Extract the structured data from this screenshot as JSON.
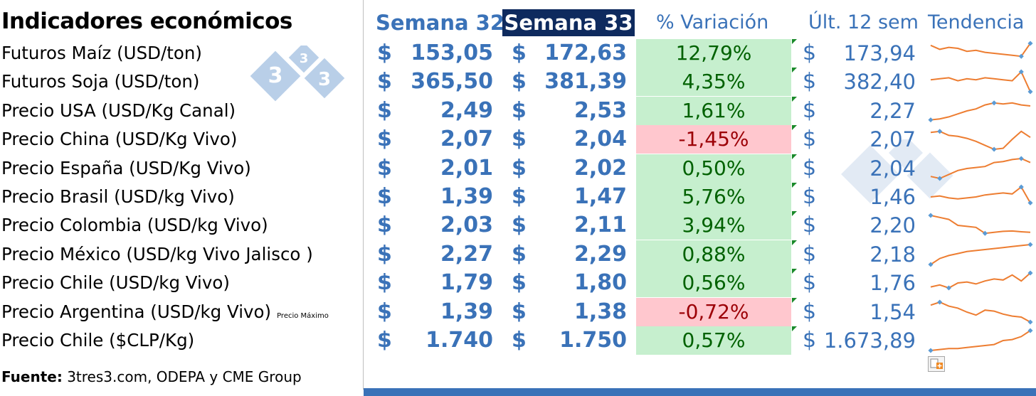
{
  "title": "Indicadores económicos",
  "headers": {
    "week32": "Semana 32",
    "week33": "Semana 33",
    "variation": "% Variación",
    "last12": "Últ. 12 sem",
    "trend": "Tendencia"
  },
  "currency_symbol": "$",
  "note": "Precio Máximo",
  "source_label": "Fuente:",
  "source_text": " 3tres3.com, ODEPA y CME Group",
  "logo_digits": [
    "3",
    "3",
    "3"
  ],
  "colors": {
    "accent_blue": "#3a72b8",
    "header_dark": "#0e2a5e",
    "positive_bg": "#c6efce",
    "positive_text": "#006100",
    "negative_bg": "#ffc7ce",
    "negative_text": "#9c0006",
    "sparkline": "#ed7d31",
    "sparkline_marker": "#5b9bd5"
  },
  "rows": [
    {
      "label": "Futuros Maíz (USD/ton)",
      "w32": "153,05",
      "w33": "172,63",
      "variation": "12,79%",
      "sign": "pos",
      "last12": "173,94",
      "trend": [
        0.9,
        0.7,
        0.8,
        0.75,
        0.6,
        0.65,
        0.55,
        0.5,
        0.45,
        0.4,
        0.35,
        1.0
      ]
    },
    {
      "label": "Futuros Soja (USD/ton)",
      "w32": "365,50",
      "w33": "381,39",
      "variation": "4,35%",
      "sign": "pos",
      "last12": "382,40",
      "trend": [
        0.6,
        0.65,
        0.7,
        0.55,
        0.65,
        0.6,
        0.7,
        0.65,
        0.6,
        0.55,
        1.0,
        0.0
      ]
    },
    {
      "label": "Precio USA (USD/Kg Canal)",
      "w32": "2,49",
      "w33": "2,53",
      "variation": "1,61%",
      "sign": "pos",
      "last12": "2,27",
      "trend": [
        0.05,
        0.1,
        0.2,
        0.35,
        0.5,
        0.6,
        0.8,
        0.9,
        0.85,
        0.9,
        0.8,
        0.75
      ]
    },
    {
      "label": "Precio China (USD/Kg Vivo)",
      "w32": "2,07",
      "w33": "2,04",
      "variation": "-1,45%",
      "sign": "neg",
      "last12": "2,07",
      "trend": [
        0.85,
        0.9,
        0.7,
        0.65,
        0.55,
        0.4,
        0.2,
        0.0,
        0.05,
        0.5,
        0.9,
        0.6
      ]
    },
    {
      "label": "Precio España (USD/Kg Vivo)",
      "w32": "2,01",
      "w33": "2,02",
      "variation": "0,50%",
      "sign": "pos",
      "last12": "2,04",
      "trend": [
        0.1,
        0.0,
        0.2,
        0.4,
        0.5,
        0.55,
        0.6,
        0.8,
        0.85,
        0.95,
        1.0,
        0.8
      ]
    },
    {
      "label": "Precio  Brasil (USD/kg Vivo)",
      "w32": "1,39",
      "w33": "1,47",
      "variation": "5,76%",
      "sign": "pos",
      "last12": "1,46",
      "trend": [
        0.5,
        0.55,
        0.45,
        0.4,
        0.45,
        0.5,
        0.6,
        0.65,
        0.7,
        0.65,
        1.0,
        0.2
      ]
    },
    {
      "label": "Precio Colombia (USD/kg Vivo)",
      "w32": "2,03",
      "w33": "2,11",
      "variation": "3,94%",
      "sign": "pos",
      "last12": "2,20",
      "trend": [
        1.0,
        0.9,
        0.8,
        0.5,
        0.45,
        0.4,
        0.1,
        0.15,
        0.2,
        0.22,
        0.18,
        0.15
      ]
    },
    {
      "label": "Precio México (USD/kg Vivo Jalisco )",
      "w32": "2,27",
      "w33": "2,29",
      "variation": "0,88%",
      "sign": "pos",
      "last12": "2,18",
      "trend": [
        0.0,
        0.3,
        0.45,
        0.55,
        0.65,
        0.7,
        0.75,
        0.8,
        0.85,
        0.9,
        0.95,
        1.0
      ]
    },
    {
      "label": "Precio Chile (USD/kg Vivo)",
      "w32": "1,79",
      "w33": "1,80",
      "variation": "0,56%",
      "sign": "pos",
      "last12": "1,76",
      "trend": [
        0.3,
        0.4,
        0.25,
        0.5,
        0.55,
        0.45,
        0.6,
        0.7,
        0.65,
        0.9,
        0.6,
        1.0
      ]
    },
    {
      "label": "Precio Argentina (USD/kg Vivo)",
      "hasNote": true,
      "w32": "1,39",
      "w33": "1,38",
      "variation": "-0,72%",
      "sign": "neg",
      "last12": "1,54",
      "trend": [
        0.85,
        1.0,
        0.8,
        0.7,
        0.5,
        0.35,
        0.6,
        0.55,
        0.4,
        0.3,
        0.25,
        0.0
      ]
    },
    {
      "label": "Precio Chile ($CLP/Kg)",
      "w32": "1.740",
      "w33": "1.750",
      "variation": "0,57%",
      "sign": "pos",
      "last12": "1.673,89",
      "trend": [
        0.0,
        0.05,
        0.1,
        0.1,
        0.15,
        0.2,
        0.25,
        0.3,
        0.5,
        0.55,
        0.7,
        1.0
      ]
    }
  ]
}
